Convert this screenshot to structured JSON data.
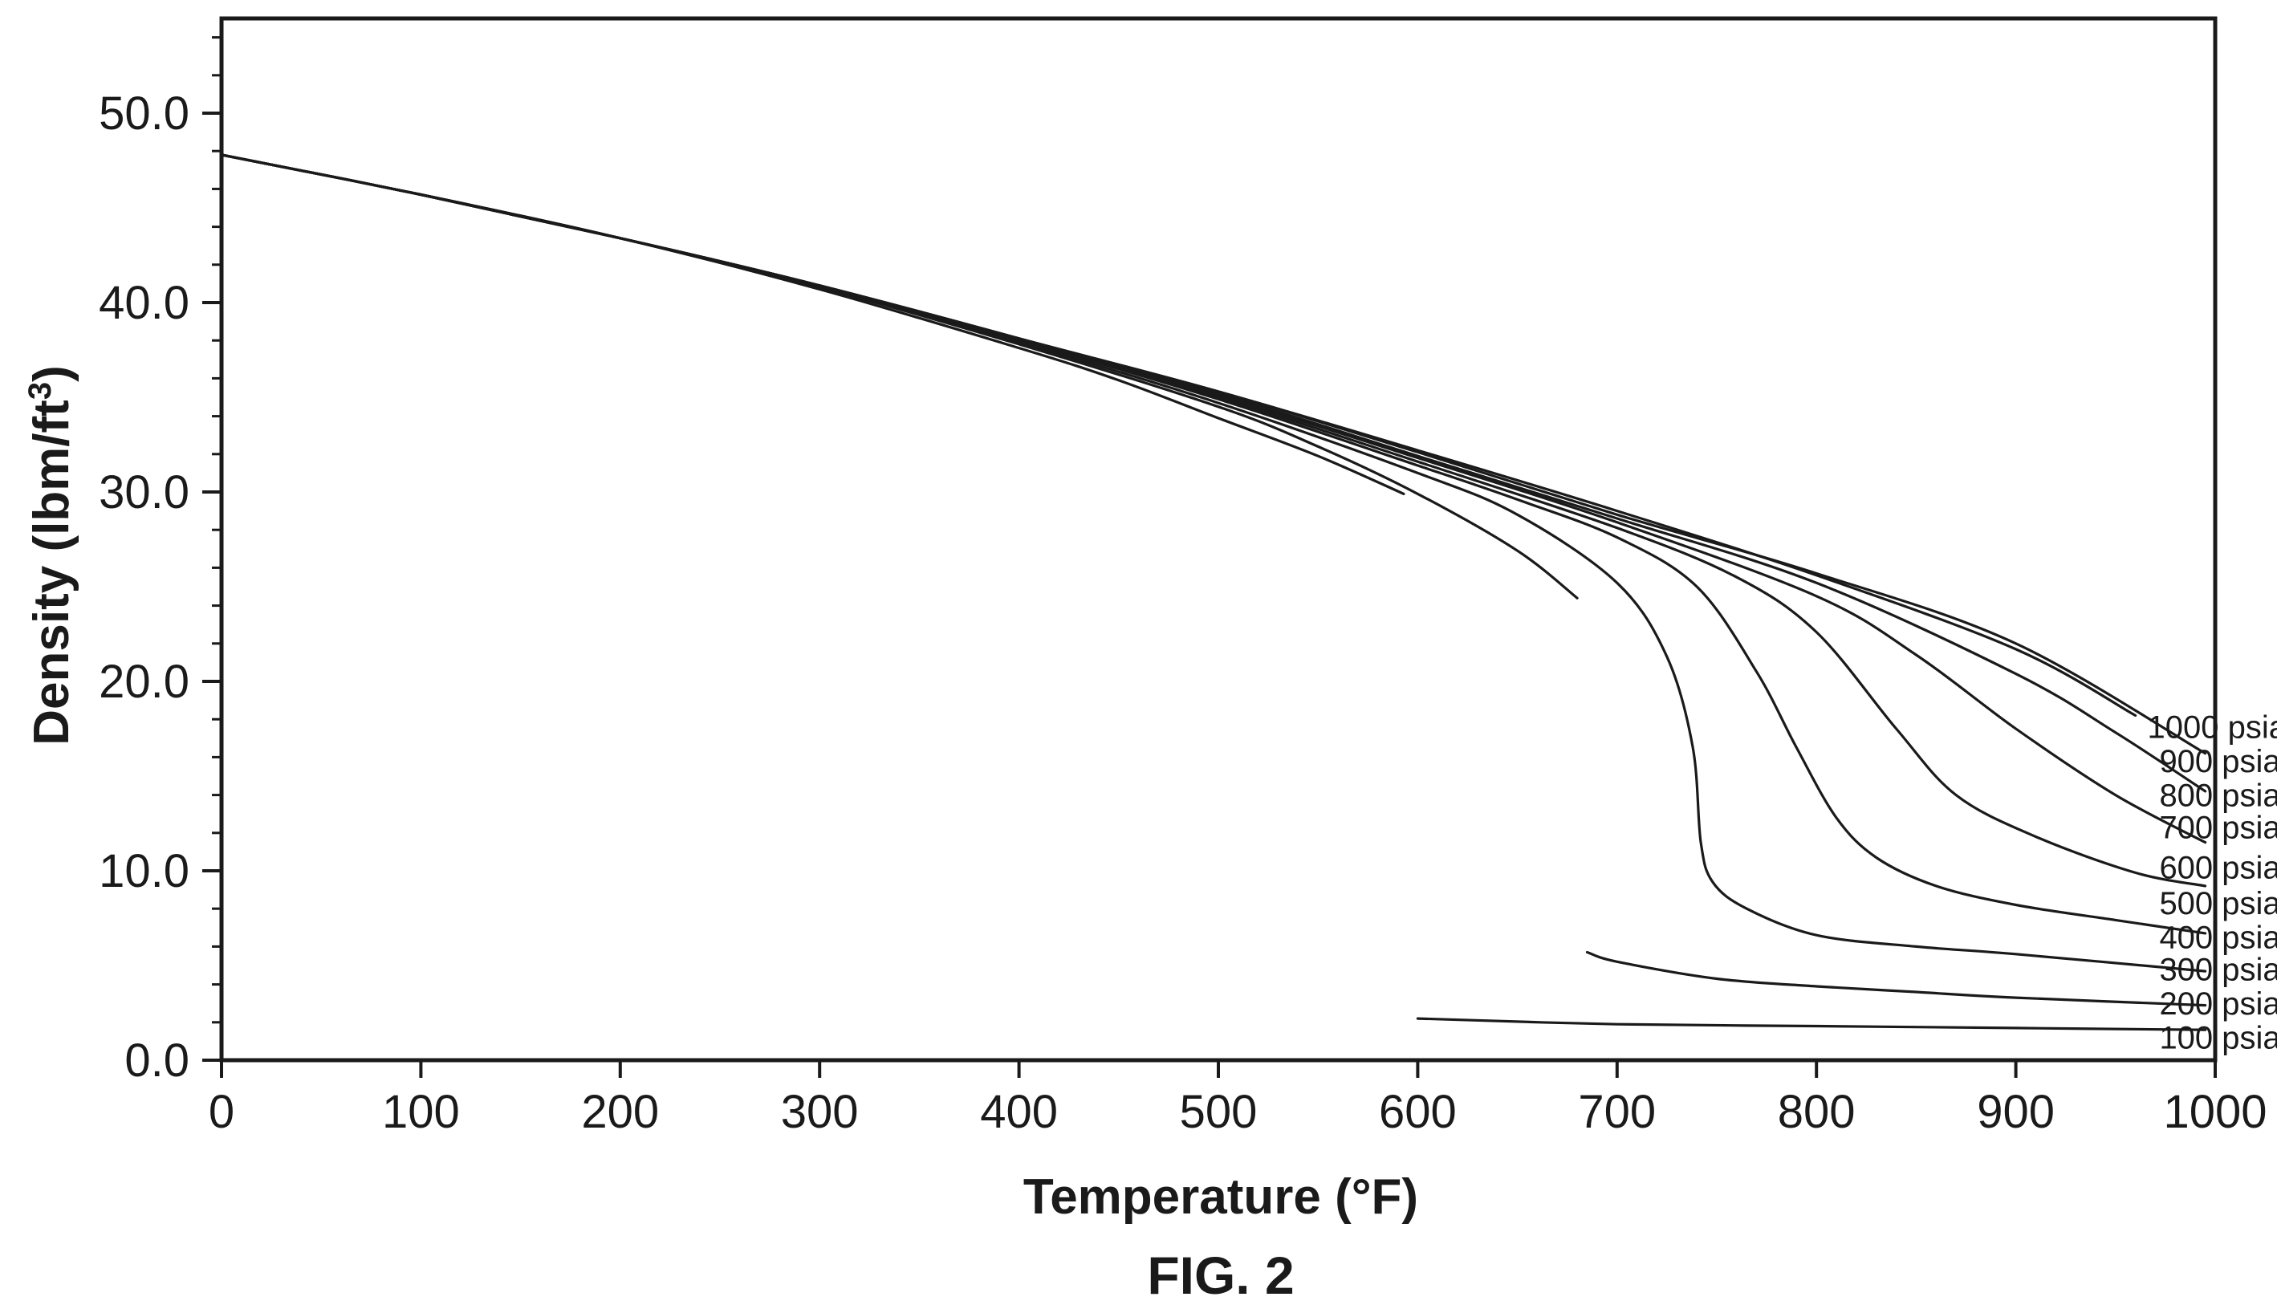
{
  "figure": {
    "caption": "FIG. 2"
  },
  "chart_data": {
    "type": "line",
    "xlabel": "Temperature (°F)",
    "ylabel_main": "Density (lbm/ft",
    "ylabel_sup": "3",
    "ylabel_tail": ")",
    "xlim": [
      0,
      1000
    ],
    "ylim": [
      0,
      55
    ],
    "x_ticks": [
      {
        "value": 0,
        "label": "0"
      },
      {
        "value": 100,
        "label": "100"
      },
      {
        "value": 200,
        "label": "200"
      },
      {
        "value": 300,
        "label": "300"
      },
      {
        "value": 400,
        "label": "400"
      },
      {
        "value": 500,
        "label": "500"
      },
      {
        "value": 600,
        "label": "600"
      },
      {
        "value": 700,
        "label": "700"
      },
      {
        "value": 800,
        "label": "800"
      },
      {
        "value": 900,
        "label": "900"
      },
      {
        "value": 1000,
        "label": "1000"
      }
    ],
    "y_ticks": [
      {
        "value": 0,
        "label": "0.0"
      },
      {
        "value": 10,
        "label": "10.0"
      },
      {
        "value": 20,
        "label": "20.0"
      },
      {
        "value": 30,
        "label": "30.0"
      },
      {
        "value": 40,
        "label": "40.0"
      },
      {
        "value": 50,
        "label": "50.0"
      }
    ],
    "grid": false,
    "line_color": "#1a1a1a",
    "series": [
      {
        "name": "100 psia",
        "segments": [
          [
            [
              600,
              2.2
            ],
            [
              700,
              1.9
            ],
            [
              800,
              1.8
            ],
            [
              900,
              1.7
            ],
            [
              995,
              1.6
            ]
          ]
        ]
      },
      {
        "name": "200 psia",
        "segments": [
          [
            [
              0,
              47.8
            ],
            [
              100,
              45.7
            ],
            [
              200,
              43.4
            ],
            [
              300,
              40.7
            ],
            [
              400,
              37.6
            ],
            [
              450,
              35.9
            ],
            [
              500,
              33.9
            ],
            [
              550,
              31.9
            ],
            [
              593,
              29.9
            ]
          ],
          [
            [
              685,
              5.7
            ],
            [
              700,
              5.2
            ],
            [
              750,
              4.3
            ],
            [
              800,
              3.9
            ],
            [
              850,
              3.6
            ],
            [
              900,
              3.3
            ],
            [
              995,
              2.9
            ]
          ]
        ]
      },
      {
        "name": "300 psia",
        "segments": [
          [
            [
              0,
              47.8
            ],
            [
              100,
              45.7
            ],
            [
              200,
              43.4
            ],
            [
              300,
              40.8
            ],
            [
              400,
              37.8
            ],
            [
              500,
              34.5
            ],
            [
              550,
              32.4
            ],
            [
              600,
              29.9
            ],
            [
              650,
              26.9
            ],
            [
              680,
              24.4
            ]
          ]
        ]
      },
      {
        "name": "400 psia",
        "segments": [
          [
            [
              0,
              47.8
            ],
            [
              100,
              45.7
            ],
            [
              200,
              43.4
            ],
            [
              300,
              40.8
            ],
            [
              400,
              37.9
            ],
            [
              500,
              34.7
            ],
            [
              600,
              31.0
            ],
            [
              650,
              28.8
            ],
            [
              700,
              25.2
            ],
            [
              725,
              21.3
            ],
            [
              738,
              16.5
            ],
            [
              742,
              11.5
            ],
            [
              748,
              9.4
            ],
            [
              765,
              8.0
            ],
            [
              800,
              6.6
            ],
            [
              850,
              6.0
            ],
            [
              900,
              5.6
            ],
            [
              995,
              4.7
            ]
          ]
        ]
      },
      {
        "name": "500 psia",
        "segments": [
          [
            [
              0,
              47.8
            ],
            [
              100,
              45.7
            ],
            [
              200,
              43.4
            ],
            [
              300,
              40.9
            ],
            [
              400,
              38.0
            ],
            [
              500,
              34.9
            ],
            [
              600,
              31.4
            ],
            [
              650,
              29.6
            ],
            [
              700,
              27.6
            ],
            [
              740,
              25.0
            ],
            [
              770,
              20.5
            ],
            [
              790,
              16.5
            ],
            [
              810,
              12.8
            ],
            [
              830,
              10.7
            ],
            [
              860,
              9.2
            ],
            [
              900,
              8.2
            ],
            [
              950,
              7.4
            ],
            [
              995,
              6.7
            ]
          ]
        ]
      },
      {
        "name": "600 psia",
        "segments": [
          [
            [
              0,
              47.8
            ],
            [
              100,
              45.7
            ],
            [
              200,
              43.4
            ],
            [
              300,
              40.9
            ],
            [
              400,
              38.0
            ],
            [
              500,
              35.0
            ],
            [
              600,
              31.6
            ],
            [
              700,
              28.1
            ],
            [
              760,
              25.5
            ],
            [
              800,
              22.6
            ],
            [
              840,
              17.5
            ],
            [
              870,
              14.0
            ],
            [
              910,
              11.8
            ],
            [
              960,
              9.9
            ],
            [
              995,
              9.2
            ]
          ]
        ]
      },
      {
        "name": "700 psia",
        "segments": [
          [
            [
              0,
              47.8
            ],
            [
              100,
              45.7
            ],
            [
              200,
              43.4
            ],
            [
              300,
              40.9
            ],
            [
              400,
              38.1
            ],
            [
              500,
              35.1
            ],
            [
              600,
              31.8
            ],
            [
              700,
              28.4
            ],
            [
              800,
              24.5
            ],
            [
              850,
              21.4
            ],
            [
              900,
              17.5
            ],
            [
              950,
              14.0
            ],
            [
              995,
              11.5
            ]
          ]
        ]
      },
      {
        "name": "800 psia",
        "segments": [
          [
            [
              0,
              47.8
            ],
            [
              100,
              45.7
            ],
            [
              200,
              43.4
            ],
            [
              300,
              40.9
            ],
            [
              400,
              38.1
            ],
            [
              500,
              35.2
            ],
            [
              600,
              31.9
            ],
            [
              700,
              28.6
            ],
            [
              800,
              25.2
            ],
            [
              900,
              20.4
            ],
            [
              950,
              17.3
            ],
            [
              995,
              14.2
            ]
          ]
        ]
      },
      {
        "name": "900 psia",
        "segments": [
          [
            [
              0,
              47.8
            ],
            [
              100,
              45.7
            ],
            [
              200,
              43.4
            ],
            [
              300,
              40.9
            ],
            [
              400,
              38.1
            ],
            [
              500,
              35.3
            ],
            [
              600,
              32.1
            ],
            [
              700,
              28.8
            ],
            [
              800,
              25.7
            ],
            [
              900,
              22.0
            ],
            [
              995,
              16.2
            ]
          ]
        ]
      },
      {
        "name": "1000 psia",
        "segments": [
          [
            [
              0,
              47.8
            ],
            [
              100,
              45.7
            ],
            [
              200,
              43.4
            ],
            [
              300,
              40.9
            ],
            [
              400,
              38.1
            ],
            [
              500,
              35.3
            ],
            [
              600,
              32.2
            ],
            [
              700,
              29.0
            ],
            [
              800,
              25.6
            ],
            [
              900,
              21.7
            ],
            [
              960,
              18.2
            ]
          ]
        ]
      }
    ],
    "curve_labels": [
      {
        "text": "1000 psia",
        "x": 966,
        "y": 17.6
      },
      {
        "text": "900 psia",
        "x": 972,
        "y": 15.8
      },
      {
        "text": "800 psia",
        "x": 972,
        "y": 14.0
      },
      {
        "text": "700 psia",
        "x": 972,
        "y": 12.3
      },
      {
        "text": "600 psia",
        "x": 972,
        "y": 10.2
      },
      {
        "text": "500 psia",
        "x": 972,
        "y": 8.3
      },
      {
        "text": "400 psia",
        "x": 972,
        "y": 6.5
      },
      {
        "text": "300 psia",
        "x": 972,
        "y": 4.8
      },
      {
        "text": "200 psia",
        "x": 972,
        "y": 3.0
      },
      {
        "text": "100 psia",
        "x": 972,
        "y": 1.2
      }
    ]
  }
}
